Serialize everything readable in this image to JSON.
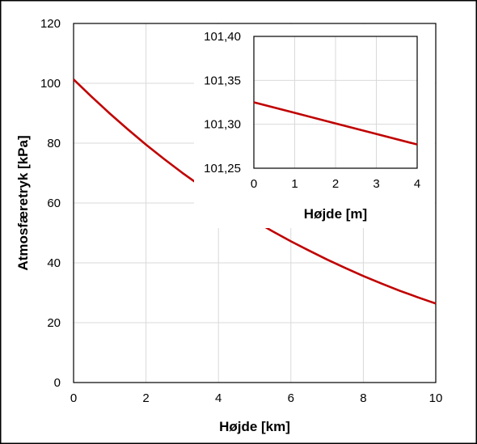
{
  "chart_data": [
    {
      "type": "line",
      "xlabel": "Højde [km]",
      "ylabel": "Atmosfæretryk [kPa]",
      "xlim": [
        0,
        10
      ],
      "ylim": [
        0,
        120
      ],
      "x_ticks": [
        "0",
        "2",
        "4",
        "6",
        "8",
        "10"
      ],
      "y_ticks": [
        "0",
        "20",
        "40",
        "60",
        "80",
        "100",
        "120"
      ],
      "grid": true,
      "legend": "none",
      "line_color": "#c00000",
      "series": [
        {
          "x": [
            0,
            0.5,
            1,
            1.5,
            2,
            2.5,
            3,
            3.5,
            4,
            4.5,
            5,
            5.5,
            6,
            6.5,
            7,
            7.5,
            8,
            8.5,
            9,
            9.5,
            10
          ],
          "values": [
            101.3,
            95.5,
            89.9,
            84.6,
            79.5,
            74.7,
            70.1,
            65.8,
            61.6,
            57.7,
            54.0,
            50.5,
            47.2,
            44.1,
            41.1,
            38.3,
            35.6,
            33.1,
            30.7,
            28.5,
            26.4
          ]
        }
      ]
    },
    {
      "type": "line",
      "xlabel": "Højde [m]",
      "ylabel": "",
      "xlim": [
        0,
        4
      ],
      "ylim": [
        101.25,
        101.4
      ],
      "x_ticks": [
        "0",
        "1",
        "2",
        "3",
        "4"
      ],
      "y_ticks": [
        "101,25",
        "101,30",
        "101,35",
        "101,40"
      ],
      "grid": true,
      "legend": "none",
      "line_color": "#c00000",
      "series": [
        {
          "x": [
            0,
            1,
            2,
            3,
            4
          ],
          "values": [
            101.325,
            101.313,
            101.301,
            101.289,
            101.277
          ]
        }
      ]
    }
  ]
}
